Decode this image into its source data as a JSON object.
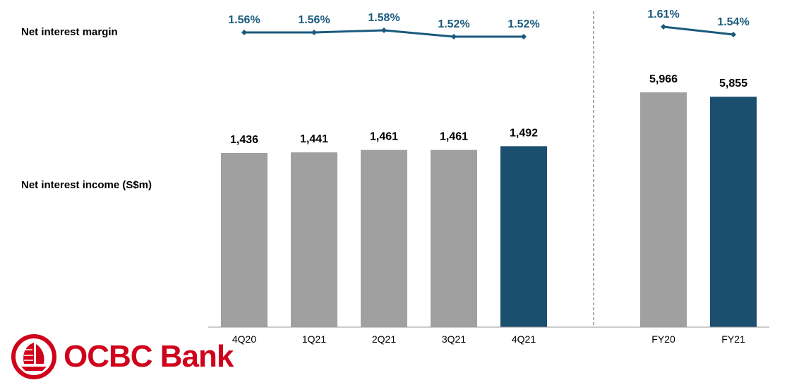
{
  "row_labels": {
    "nim": "Net interest margin",
    "nii": "Net interest income (S$m)"
  },
  "brand": {
    "name": "OCBC Bank",
    "color": "#d0021b",
    "icon": "ocbc-junk-sail-logo"
  },
  "colors": {
    "bar_gray": "#a0a0a0",
    "bar_highlight": "#1a4f70",
    "line": "#1a5a7d",
    "pct_text": "#1a5a7d"
  },
  "chart_data": {
    "type": "bar",
    "categories": [
      "4Q20",
      "1Q21",
      "2Q21",
      "3Q21",
      "4Q21",
      "FY20",
      "FY21"
    ],
    "groups": [
      {
        "categories": [
          "4Q20",
          "1Q21",
          "2Q21",
          "3Q21",
          "4Q21"
        ],
        "nii": [
          1436,
          1441,
          1461,
          1461,
          1492
        ],
        "nii_labels": [
          "1,436",
          "1,441",
          "1,461",
          "1,461",
          "1,492"
        ],
        "nim": [
          1.56,
          1.56,
          1.58,
          1.52,
          1.52
        ],
        "nim_labels": [
          "1.56%",
          "1.56%",
          "1.58%",
          "1.52%",
          "1.52%"
        ],
        "highlight": [
          false,
          false,
          false,
          false,
          true
        ]
      },
      {
        "categories": [
          "FY20",
          "FY21"
        ],
        "nii": [
          5966,
          5855
        ],
        "nii_labels": [
          "5,966",
          "5,855"
        ],
        "nim": [
          1.61,
          1.54
        ],
        "nim_labels": [
          "1.61%",
          "1.54%"
        ],
        "highlight": [
          false,
          true
        ]
      }
    ],
    "divider": "dashed vertical line between 4Q21 and FY20"
  }
}
